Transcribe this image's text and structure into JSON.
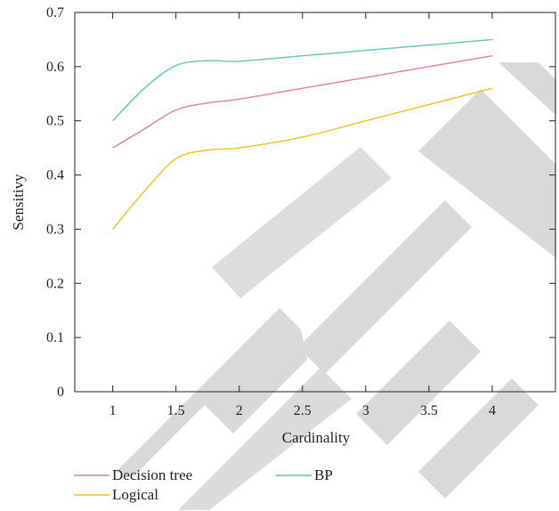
{
  "chart_data": {
    "type": "line",
    "title": "",
    "xlabel": "Cardinality",
    "ylabel": "Sensitivy",
    "xlim": [
      0.7,
      4.5
    ],
    "ylim": [
      0,
      0.7
    ],
    "xticks": [
      1,
      1.5,
      2,
      2.5,
      3,
      3.5,
      4
    ],
    "xtick_labels": [
      "1",
      "1.5",
      "2",
      "2.5",
      "3",
      "3.5",
      "4"
    ],
    "yticks": [
      0,
      0.1,
      0.2,
      0.3,
      0.4,
      0.5,
      0.6,
      0.7
    ],
    "ytick_labels": [
      "0",
      "0.1",
      "0.2",
      "0.3",
      "0.4",
      "0.5",
      "0.6",
      "0.7"
    ],
    "grid": false,
    "legend_position": "bottom",
    "series": [
      {
        "name": "Decision tree",
        "color": "#e87aa0",
        "x": [
          1,
          1.25,
          1.5,
          1.75,
          2,
          2.5,
          3,
          3.5,
          4
        ],
        "y": [
          0.45,
          0.485,
          0.52,
          0.533,
          0.54,
          0.56,
          0.58,
          0.6,
          0.62
        ]
      },
      {
        "name": "BP",
        "color": "#5cc4bf",
        "x": [
          1,
          1.25,
          1.5,
          1.75,
          2,
          2.5,
          3,
          3.5,
          4
        ],
        "y": [
          0.5,
          0.56,
          0.602,
          0.611,
          0.61,
          0.62,
          0.63,
          0.64,
          0.65
        ]
      },
      {
        "name": "Logical",
        "color": "#f2c214",
        "x": [
          1,
          1.25,
          1.5,
          1.75,
          2,
          2.5,
          3,
          3.5,
          4
        ],
        "y": [
          0.3,
          0.37,
          0.43,
          0.446,
          0.45,
          0.47,
          0.5,
          0.53,
          0.56
        ]
      }
    ]
  }
}
